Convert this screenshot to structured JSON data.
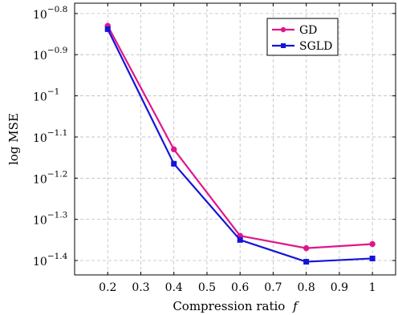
{
  "chart_data": {
    "type": "line",
    "xlabel": "Compression ratio f",
    "xlabel_main": "Compression ratio",
    "xlabel_var": "f",
    "ylabel": "log MSE",
    "x": [
      0.2,
      0.4,
      0.6,
      0.8,
      1.0
    ],
    "xlim": [
      0.1,
      1.07
    ],
    "x_ticks": [
      0.2,
      0.3,
      0.4,
      0.5,
      0.6,
      0.7,
      0.8,
      0.9,
      1.0
    ],
    "x_tick_labels": [
      "0.2",
      "0.3",
      "0.4",
      "0.5",
      "0.6",
      "0.7",
      "0.8",
      "0.9",
      "1"
    ],
    "y_scale": "log",
    "ylim_log10": [
      -1.435,
      -0.775
    ],
    "y_ticks_log10": [
      -0.8,
      -0.9,
      -1.0,
      -1.1,
      -1.2,
      -1.3,
      -1.4
    ],
    "y_tick_base": "10",
    "y_tick_exponents": [
      "−0.8",
      "−0.9",
      "−1",
      "−1.1",
      "−1.2",
      "−1.3",
      "−1.4"
    ],
    "grid": true,
    "legend_position": "top-right",
    "series": [
      {
        "name": "GD",
        "color": "#e0168c",
        "marker": "circle",
        "log10_values": [
          -0.83,
          -1.13,
          -1.34,
          -1.37,
          -1.36
        ]
      },
      {
        "name": "SGLD",
        "color": "#1414d8",
        "marker": "square",
        "log10_values": [
          -0.838,
          -1.165,
          -1.35,
          -1.403,
          -1.395
        ]
      }
    ]
  }
}
